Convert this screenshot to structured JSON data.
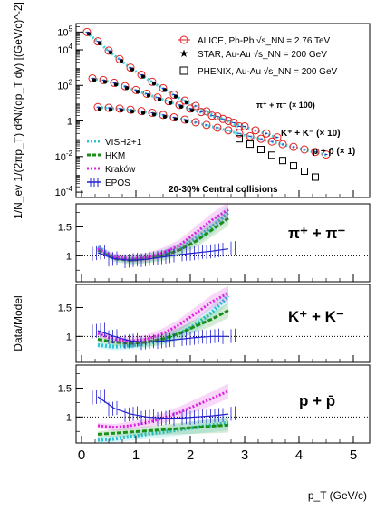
{
  "chart_data": {
    "type": "scatter",
    "xlabel": "p_T (GeV/c)",
    "x_ticks": [
      "0",
      "1",
      "2",
      "3",
      "4",
      "5"
    ],
    "xlim": [
      -0.1,
      5.3
    ],
    "top_panel": {
      "ylabel": "1/N_ev 1/(2πp_T) d²N/(dp_T dy) [(GeV/c)^-2]",
      "yscale": "log",
      "ylim": [
        5e-05,
        300000
      ],
      "y_ticks": [
        "10^5",
        "10^4",
        "10^2",
        "1",
        "10^-2",
        "10^-4"
      ],
      "legend_data": [
        {
          "label": "ALICE, Pb-Pb √s_NN = 2.76 TeV",
          "color": "#e32020",
          "marker": "circle"
        },
        {
          "label": "STAR, Au-Au √s_NN = 200 GeV",
          "color": "#000000",
          "marker": "star"
        },
        {
          "label": "PHENIX, Au-Au √s_NN = 200 GeV",
          "color": "#000000",
          "marker": "square"
        }
      ],
      "legend_models": [
        {
          "label": "VISH2+1",
          "color": "#29c5d6"
        },
        {
          "label": "HKM",
          "color": "#1a8f1a"
        },
        {
          "label": "Kraków",
          "color": "#e020e0"
        },
        {
          "label": "EPOS",
          "color": "#2020d0"
        }
      ],
      "annotation": "20-30% Central collisions",
      "species_labels": [
        "π⁺ + π⁻ (× 100)",
        "K⁺ + K⁻ (× 10)",
        "p + p̄ (× 1)"
      ],
      "series": [
        {
          "name": "π⁺ + π⁻ (× 100)",
          "x": [
            0.1,
            0.3,
            0.5,
            0.7,
            0.9,
            1.1,
            1.3,
            1.5,
            1.7,
            1.9,
            2.1,
            2.3,
            2.5,
            2.7,
            2.9
          ],
          "y": [
            100000,
            30000,
            9000,
            3000,
            1000,
            400,
            160,
            70,
            30,
            14,
            7,
            3.5,
            1.8,
            1,
            0.5
          ]
        },
        {
          "name": "K⁺ + K⁻ (× 10)",
          "x": [
            0.2,
            0.4,
            0.6,
            0.8,
            1.0,
            1.2,
            1.4,
            1.6,
            1.8,
            2.0,
            2.2,
            2.4,
            2.6,
            2.8,
            3.0,
            3.2,
            3.4,
            3.6
          ],
          "y": [
            250,
            200,
            140,
            90,
            55,
            34,
            21,
            13,
            8,
            5,
            3.2,
            2,
            1.3,
            0.8,
            0.5,
            0.3,
            0.2,
            0.12
          ]
        },
        {
          "name": "p + p̄ (× 1)",
          "x": [
            0.3,
            0.5,
            0.7,
            0.9,
            1.1,
            1.3,
            1.5,
            1.7,
            1.9,
            2.1,
            2.3,
            2.5,
            2.7,
            2.9,
            3.1,
            3.3,
            3.5,
            3.7,
            3.9,
            4.1,
            4.3,
            4.5
          ],
          "y": [
            6,
            5.5,
            5,
            4.3,
            3.6,
            2.9,
            2.2,
            1.6,
            1.2,
            0.85,
            0.6,
            0.42,
            0.3,
            0.2,
            0.14,
            0.1,
            0.07,
            0.05,
            0.035,
            0.025,
            0.018,
            0.013
          ]
        },
        {
          "name": "PHENIX",
          "x": [
            2.9,
            3.1,
            3.3,
            3.5,
            3.7,
            3.9,
            4.1,
            4.3
          ],
          "y": [
            0.1,
            0.05,
            0.025,
            0.012,
            0.006,
            0.003,
            0.0015,
            0.0007
          ]
        }
      ]
    },
    "ratio_ylabel": "Data/Model",
    "ratio_panels": [
      {
        "label": "π⁺ + π⁻",
        "y_ticks": [
          "1",
          "1.5"
        ],
        "ylim": [
          0.55,
          1.9
        ],
        "series": [
          {
            "name": "VISH2+1",
            "x": [
              0.3,
              0.6,
              0.9,
              1.2,
              1.5,
              1.8,
              2.1,
              2.4,
              2.7
            ],
            "y": [
              1.15,
              0.97,
              0.93,
              0.96,
              1.02,
              1.12,
              1.3,
              1.5,
              1.75
            ]
          },
          {
            "name": "HKM",
            "x": [
              0.3,
              0.6,
              0.9,
              1.2,
              1.5,
              1.8,
              2.1,
              2.4,
              2.7
            ],
            "y": [
              1.1,
              0.95,
              0.92,
              0.95,
              1.0,
              1.1,
              1.25,
              1.45,
              1.65
            ]
          },
          {
            "name": "Kraków",
            "x": [
              0.3,
              0.6,
              0.9,
              1.2,
              1.5,
              1.8,
              2.1,
              2.4,
              2.7
            ],
            "y": [
              1.12,
              0.98,
              0.95,
              0.97,
              1.05,
              1.18,
              1.4,
              1.62,
              1.8
            ]
          },
          {
            "name": "EPOS",
            "x": [
              0.3,
              0.6,
              0.9,
              1.2,
              1.5,
              1.8,
              2.1,
              2.4,
              2.7
            ],
            "y": [
              1.05,
              0.95,
              0.92,
              0.94,
              0.98,
              1.02,
              1.05,
              1.08,
              1.12
            ]
          }
        ]
      },
      {
        "label": "K⁺ + K⁻",
        "y_ticks": [
          "1",
          "1.5"
        ],
        "ylim": [
          0.55,
          1.9
        ],
        "series": [
          {
            "name": "VISH2+1",
            "x": [
              0.3,
              0.6,
              0.9,
              1.2,
              1.5,
              1.8,
              2.1,
              2.4,
              2.7
            ],
            "y": [
              0.85,
              0.82,
              0.84,
              0.88,
              0.94,
              1.05,
              1.2,
              1.42,
              1.7
            ]
          },
          {
            "name": "HKM",
            "x": [
              0.3,
              0.6,
              0.9,
              1.2,
              1.5,
              1.8,
              2.1,
              2.4,
              2.7
            ],
            "y": [
              0.95,
              0.9,
              0.88,
              0.9,
              0.96,
              1.05,
              1.18,
              1.3,
              1.45
            ]
          },
          {
            "name": "Kraków",
            "x": [
              0.3,
              0.6,
              0.9,
              1.2,
              1.5,
              1.8,
              2.1,
              2.4,
              2.7
            ],
            "y": [
              1.05,
              0.95,
              0.92,
              0.95,
              1.05,
              1.2,
              1.4,
              1.6,
              1.75
            ]
          },
          {
            "name": "EPOS",
            "x": [
              0.3,
              0.6,
              0.9,
              1.2,
              1.5,
              1.8,
              2.1,
              2.4,
              2.7
            ],
            "y": [
              1.1,
              1.0,
              0.92,
              0.9,
              0.92,
              0.95,
              0.98,
              1.0,
              1.0
            ]
          }
        ]
      },
      {
        "label": "p + p̄",
        "y_ticks": [
          "1",
          "1.5"
        ],
        "ylim": [
          0.55,
          1.9
        ],
        "series": [
          {
            "name": "VISH2+1",
            "x": [
              0.3,
              0.6,
              0.9,
              1.2,
              1.5,
              1.8,
              2.1,
              2.4,
              2.7
            ],
            "y": [
              0.6,
              0.62,
              0.66,
              0.7,
              0.74,
              0.78,
              0.82,
              0.86,
              0.9
            ]
          },
          {
            "name": "HKM",
            "x": [
              0.3,
              0.6,
              0.9,
              1.2,
              1.5,
              1.8,
              2.1,
              2.4,
              2.7
            ],
            "y": [
              0.7,
              0.72,
              0.74,
              0.76,
              0.78,
              0.8,
              0.82,
              0.84,
              0.86
            ]
          },
          {
            "name": "Kraków",
            "x": [
              0.3,
              0.6,
              0.9,
              1.2,
              1.5,
              1.8,
              2.1,
              2.4,
              2.7
            ],
            "y": [
              0.85,
              0.82,
              0.85,
              0.9,
              0.98,
              1.08,
              1.2,
              1.32,
              1.45
            ]
          },
          {
            "name": "EPOS",
            "x": [
              0.3,
              0.6,
              0.9,
              1.2,
              1.5,
              1.8,
              2.1,
              2.4,
              2.7
            ],
            "y": [
              1.35,
              1.15,
              1.05,
              1.0,
              0.98,
              0.98,
              1.0,
              1.02,
              1.05
            ]
          }
        ]
      }
    ]
  }
}
